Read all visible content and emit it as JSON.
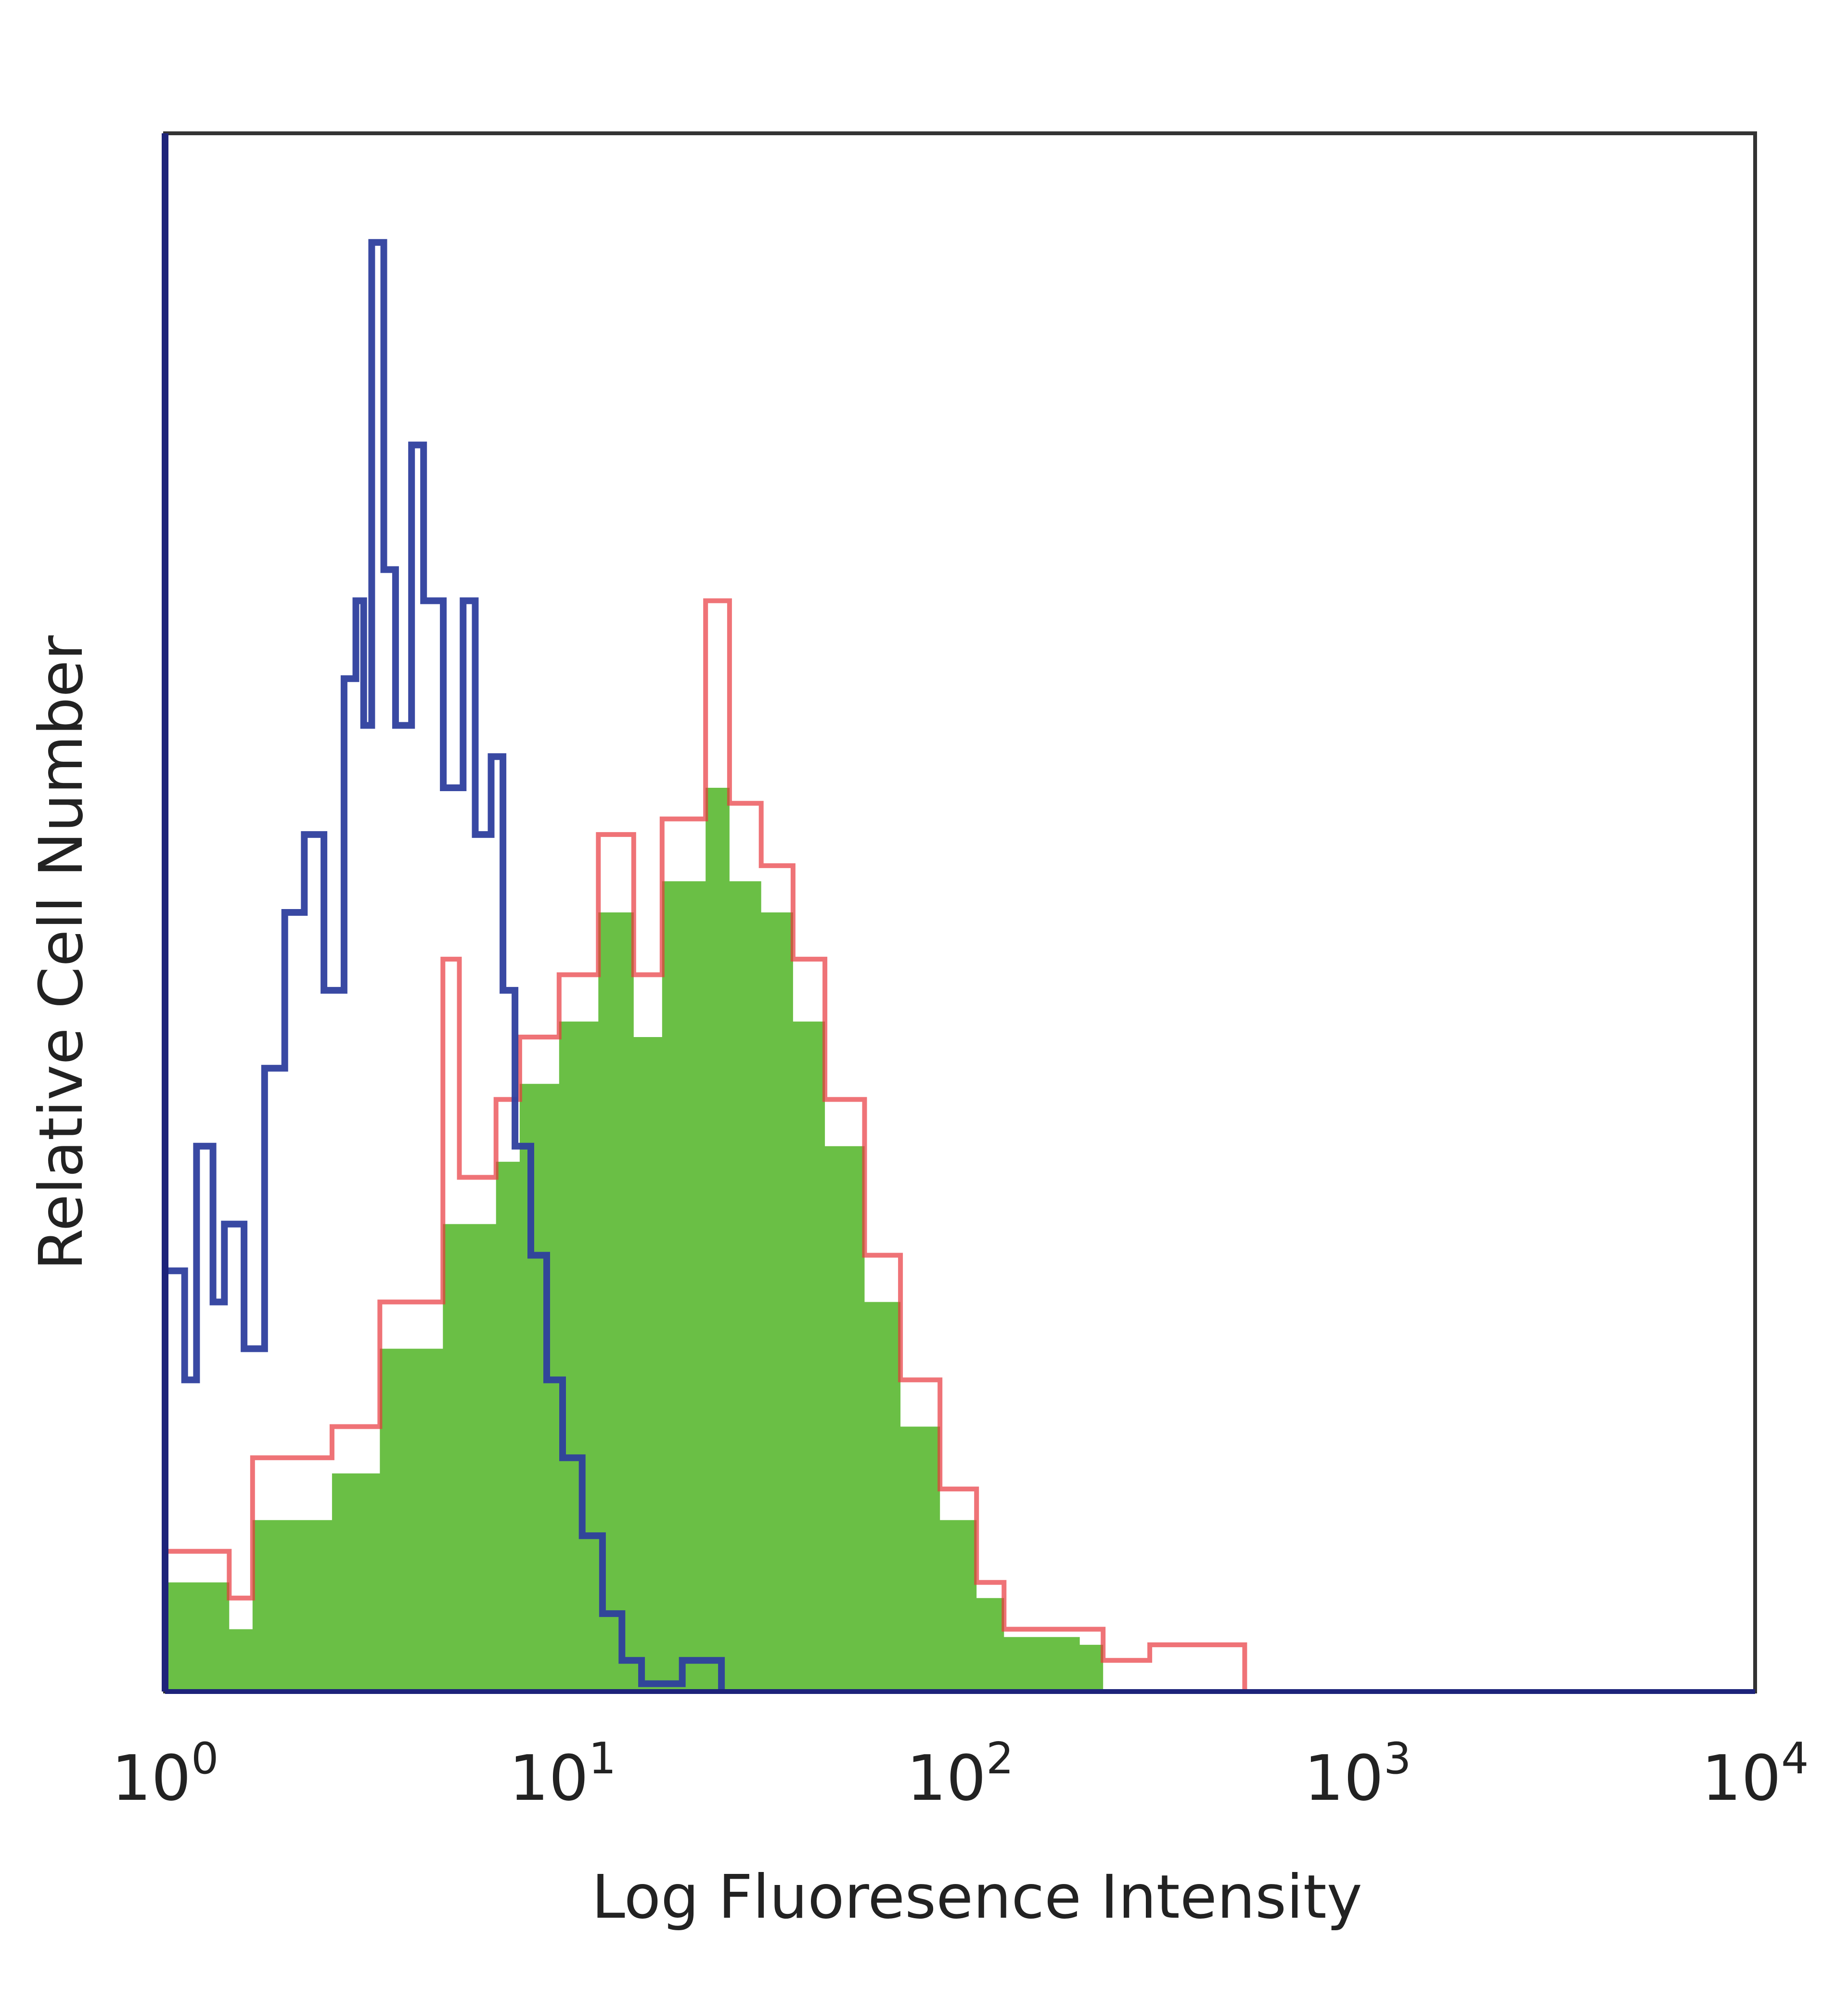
{
  "chart_data": {
    "type": "histogram-overlay",
    "title": "",
    "xlabel": "Log Fluoresence Intensity",
    "ylabel": "Relative Cell Number",
    "xscale": "log",
    "xlim": [
      1,
      10000
    ],
    "ylim": [
      0,
      100
    ],
    "x_ticks": [
      {
        "base": "10",
        "exp": "0"
      },
      {
        "base": "10",
        "exp": "1"
      },
      {
        "base": "10",
        "exp": "2"
      },
      {
        "base": "10",
        "exp": "3"
      },
      {
        "base": "10",
        "exp": "4"
      }
    ],
    "grid": false,
    "legend": "none",
    "series": [
      {
        "color": "#6abf45",
        "style": "filled",
        "x": [
          1.07,
          1.45,
          1.66,
          2.63,
          3.47,
          5.0,
          6.8,
          7.8,
          9.8,
          12.3,
          15.1,
          17.8,
          22.9,
          26.3,
          31.6,
          38,
          45.7,
          57.5,
          70.8,
          89,
          110,
          129,
          200,
          229
        ],
        "y": [
          7,
          4,
          11,
          14,
          22,
          30,
          34,
          39,
          43,
          50,
          42,
          52,
          58,
          52,
          50,
          43,
          35,
          25,
          17,
          11,
          6,
          3.5,
          3,
          0
        ]
      },
      {
        "color": "#e8383d",
        "style": "line",
        "x": [
          1.07,
          1.45,
          1.66,
          2.63,
          3.47,
          5.0,
          5.5,
          6.8,
          7.8,
          9.8,
          12.3,
          15.1,
          17.8,
          22.9,
          26.3,
          31.6,
          38,
          45.7,
          57.5,
          70.8,
          89,
          110,
          129,
          200,
          229,
          300,
          500,
          520
        ],
        "y": [
          9,
          6,
          15,
          17,
          25,
          47,
          33,
          38,
          42,
          46,
          55,
          46,
          56,
          70,
          57,
          53,
          47,
          38,
          28,
          20,
          13,
          7,
          4,
          4,
          2,
          3,
          3,
          0
        ]
      },
      {
        "color": "#2e3f9e",
        "style": "line",
        "x": [
          1.02,
          1.12,
          1.2,
          1.32,
          1.41,
          1.58,
          1.78,
          2.0,
          2.24,
          2.51,
          2.82,
          3.02,
          3.16,
          3.31,
          3.55,
          3.8,
          4.17,
          4.47,
          5.01,
          5.62,
          6.03,
          6.61,
          7.08,
          7.59,
          8.32,
          9.12,
          10,
          11.2,
          12.6,
          14.1,
          15.8,
          20,
          22.4,
          25.1
        ],
        "y": [
          27,
          20,
          35,
          25,
          30,
          22,
          40,
          50,
          55,
          45,
          65,
          70,
          62,
          93,
          72,
          62,
          80,
          70,
          58,
          70,
          55,
          60,
          45,
          35,
          28,
          20,
          15,
          10,
          5,
          2,
          0.5,
          2,
          2,
          0
        ]
      }
    ]
  }
}
